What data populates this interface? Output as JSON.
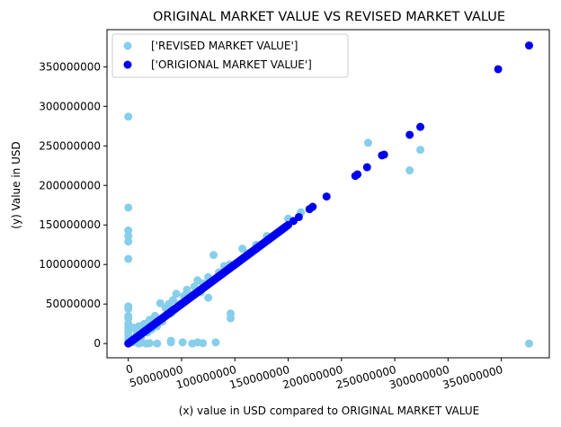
{
  "chart_data": {
    "type": "scatter",
    "title": "ORIGINAL MARKET VALUE VS REVISED MARKET VALUE",
    "xlabel": "(x) value in USD compared to ORIGINAL MARKET VALUE",
    "ylabel": "(y) Value in USD",
    "xlim": [
      -20000000,
      395000000
    ],
    "ylim": [
      -18000000,
      397000000
    ],
    "x_ticks": [
      0,
      50000000,
      100000000,
      150000000,
      200000000,
      250000000,
      300000000,
      350000000
    ],
    "x_tick_labels": [
      "0",
      "50000000",
      "100000000",
      "150000000",
      "200000000",
      "250000000",
      "300000000",
      "350000000"
    ],
    "y_ticks": [
      0,
      50000000,
      100000000,
      150000000,
      200000000,
      250000000,
      300000000,
      350000000
    ],
    "y_tick_labels": [
      "0",
      "50000000",
      "100000000",
      "150000000",
      "200000000",
      "250000000",
      "300000000",
      "350000000"
    ],
    "x_tick_rotation": 15,
    "grid": false,
    "legend_position": "top-left",
    "series": [
      {
        "name": "['REVISED MARKET VALUE']",
        "color": "#87ceeb",
        "points": [
          [
            0,
            287000000
          ],
          [
            0,
            172000000
          ],
          [
            0,
            143000000
          ],
          [
            0,
            136000000
          ],
          [
            0,
            129000000
          ],
          [
            0,
            107000000
          ],
          [
            0,
            47000000
          ],
          [
            0,
            44000000
          ],
          [
            0,
            35000000
          ],
          [
            0,
            32000000
          ],
          [
            0,
            25000000
          ],
          [
            0,
            20000000
          ],
          [
            0,
            15000000
          ],
          [
            0,
            10000000
          ],
          [
            0,
            5000000
          ],
          [
            5000000,
            20000000
          ],
          [
            8000000,
            12000000
          ],
          [
            10000000,
            22000000
          ],
          [
            12000000,
            8000000
          ],
          [
            15000000,
            25000000
          ],
          [
            18000000,
            14000000
          ],
          [
            20000000,
            30000000
          ],
          [
            22000000,
            18000000
          ],
          [
            25000000,
            35000000
          ],
          [
            27000000,
            22000000
          ],
          [
            30000000,
            51000000
          ],
          [
            32000000,
            28000000
          ],
          [
            35000000,
            45000000
          ],
          [
            38000000,
            50000000
          ],
          [
            40000000,
            38000000
          ],
          [
            42000000,
            55000000
          ],
          [
            45000000,
            63000000
          ],
          [
            48000000,
            50000000
          ],
          [
            52000000,
            60000000
          ],
          [
            55000000,
            68000000
          ],
          [
            58000000,
            62000000
          ],
          [
            62000000,
            72000000
          ],
          [
            65000000,
            80000000
          ],
          [
            68000000,
            65000000
          ],
          [
            70000000,
            76000000
          ],
          [
            75000000,
            58000000
          ],
          [
            75000000,
            84000000
          ],
          [
            80000000,
            112000000
          ],
          [
            85000000,
            90000000
          ],
          [
            90000000,
            98000000
          ],
          [
            95000000,
            100000000
          ],
          [
            96000000,
            38000000
          ],
          [
            96000000,
            32000000
          ],
          [
            107000000,
            120000000
          ],
          [
            112000000,
            114000000
          ],
          [
            120000000,
            125000000
          ],
          [
            130000000,
            136000000
          ],
          [
            150000000,
            158000000
          ],
          [
            162000000,
            166000000
          ],
          [
            225000000,
            254000000
          ],
          [
            264000000,
            219000000
          ],
          [
            274000000,
            245000000
          ],
          [
            376000000,
            0
          ],
          [
            10000000,
            0
          ],
          [
            20000000,
            500000
          ],
          [
            27000000,
            0
          ],
          [
            40000000,
            1500000
          ],
          [
            40000000,
            3500000
          ],
          [
            51000000,
            1500000
          ],
          [
            60000000,
            0
          ],
          [
            65000000,
            1500000
          ],
          [
            70000000,
            500000
          ],
          [
            82000000,
            1500000
          ],
          [
            5000000,
            2000000
          ],
          [
            12000000,
            1000000
          ],
          [
            17000000,
            0
          ]
        ]
      },
      {
        "name": "['ORIGIONAL MARKET VALUE']",
        "color": "#0000ee",
        "points": [
          [
            150000000,
            150000000
          ],
          [
            155000000,
            155000000
          ],
          [
            160000000,
            160000000
          ],
          [
            170000000,
            170000000
          ],
          [
            173000000,
            173000000
          ],
          [
            186000000,
            186000000
          ],
          [
            213000000,
            212000000
          ],
          [
            215000000,
            214000000
          ],
          [
            224000000,
            223000000
          ],
          [
            238000000,
            238000000
          ],
          [
            240000000,
            239000000
          ],
          [
            264000000,
            264000000
          ],
          [
            274000000,
            274000000
          ],
          [
            347000000,
            347000000
          ],
          [
            376000000,
            377000000
          ]
        ]
      }
    ],
    "dense_band": {
      "series": "['ORIGIONAL MARKET VALUE']",
      "from": 0,
      "to": 148000000
    }
  }
}
